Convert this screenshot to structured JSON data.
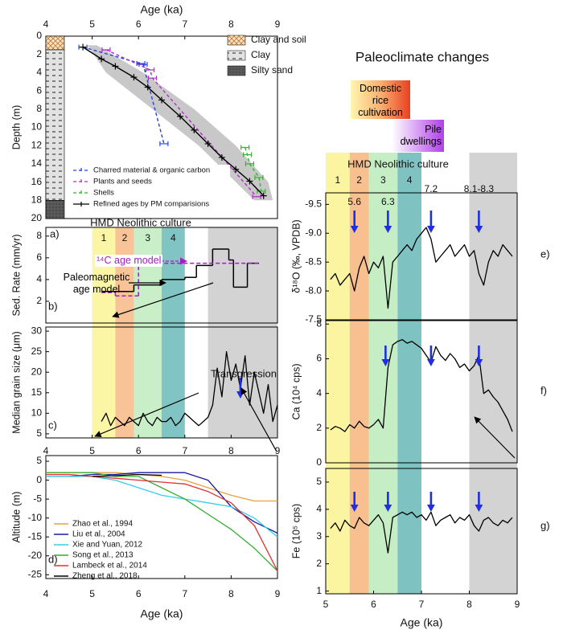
{
  "chart_data": [
    {
      "type": "age-depth",
      "xlabel": "Age (ka)",
      "ylabel": "Depth (m)",
      "panel_label": "a)",
      "xlim": [
        4,
        9
      ],
      "xticks": [
        4,
        5,
        6,
        7,
        8,
        9
      ],
      "ylim": [
        20,
        0
      ],
      "yticks": [
        0,
        2,
        4,
        6,
        8,
        10,
        12,
        14,
        16,
        18,
        20
      ],
      "lithology": [
        {
          "name": "Clay and soil",
          "top": 0,
          "bottom": 1.5,
          "pattern": "crosshatch"
        },
        {
          "name": "Clay",
          "top": 1.5,
          "bottom": 18,
          "pattern": "dash"
        },
        {
          "name": "Silty sand",
          "top": 18,
          "bottom": 20,
          "pattern": "dark"
        }
      ],
      "envelope": {
        "depth": [
          1,
          4,
          8,
          12,
          16,
          18
        ],
        "min": [
          4.9,
          5.3,
          6.3,
          7.3,
          8.1,
          8.5
        ],
        "max": [
          5.1,
          6.1,
          7.2,
          8.1,
          8.8,
          8.9
        ]
      },
      "series": [
        {
          "name": "Charred material & organic carbon",
          "color": "#2340e0",
          "style": "dashed",
          "marker": "errbar",
          "x": [
            4.8,
            6.05,
            6.1,
            6.55
          ],
          "values": [
            1.2,
            3.0,
            3.1,
            11.8
          ]
        },
        {
          "name": "Plants and seeds",
          "color": "#b22fc6",
          "style": "dashed",
          "marker": "errbar",
          "x": [
            5.3,
            6.25,
            6.3,
            8.55
          ],
          "values": [
            1.5,
            3.7,
            4.6,
            17.6
          ]
        },
        {
          "name": "Shells",
          "color": "#2fb52f",
          "style": "dashed",
          "marker": "errbar",
          "x": [
            8.3,
            8.35,
            8.4,
            8.6,
            8.65
          ],
          "values": [
            12.2,
            13.0,
            14.0,
            15.5,
            17.0
          ]
        },
        {
          "name": "Refined ages by PM comparisions",
          "color": "#000000",
          "style": "solid",
          "marker": "plus",
          "x": [
            4.8,
            5.2,
            5.5,
            5.9,
            6.2,
            6.5,
            6.9,
            7.2,
            7.5,
            7.8,
            8.1,
            8.4,
            8.7
          ],
          "values": [
            1.2,
            2.5,
            3.3,
            4.5,
            5.6,
            7.0,
            8.8,
            10.3,
            11.8,
            13.3,
            14.6,
            15.9,
            17.5
          ]
        }
      ]
    },
    {
      "type": "step",
      "ylabel": "Sed. Rate (mm/yr)",
      "panel_label": "b)",
      "xlim": [
        4,
        9
      ],
      "ylim": [
        0,
        8.8
      ],
      "yticks": [
        2,
        4,
        6,
        8
      ],
      "periods": [
        {
          "label": "1",
          "start": 5.0,
          "end": 5.5,
          "color": "#fbf6a6"
        },
        {
          "label": "2",
          "start": 5.5,
          "end": 5.9,
          "color": "#f8c497"
        },
        {
          "label": "3",
          "start": 5.9,
          "end": 6.5,
          "color": "#c9efc8"
        },
        {
          "label": "4",
          "start": 6.5,
          "end": 7.0,
          "color": "#80c4c4"
        }
      ],
      "shade": {
        "start": 7.5,
        "end": 9.0,
        "color": "#d3d3d3"
      },
      "annotations": [
        "HMD Neolithic culture"
      ],
      "series": [
        {
          "name": "Paleomagnetic age model",
          "color": "#000000",
          "style": "solid",
          "bins": [
            5.2,
            5.9,
            6.5,
            7.0,
            7.25,
            7.6,
            7.95,
            8.05,
            8.35,
            8.6
          ],
          "values": [
            2.9,
            3.5,
            4.0,
            4.2,
            5.3,
            6.8,
            5.8,
            3.3,
            5.5
          ]
        },
        {
          "name": "¹⁴C age model",
          "color": "#a020c0",
          "style": "dashed",
          "bins": [
            5.2,
            5.5,
            6.0,
            8.6
          ],
          "values": [
            2.8,
            2.5,
            5.5
          ]
        }
      ]
    },
    {
      "type": "line",
      "ylabel": "Median grain size (μm)",
      "panel_label": "c)",
      "xlim": [
        4,
        9
      ],
      "xticks": [
        4,
        5,
        6,
        7,
        8,
        9
      ],
      "ylim": [
        4,
        31
      ],
      "yticks": [
        5,
        10,
        15,
        20,
        25,
        30
      ],
      "annotations": [
        "Transgression"
      ],
      "x": [
        5.2,
        5.3,
        5.4,
        5.5,
        5.6,
        5.7,
        5.8,
        5.9,
        6.0,
        6.1,
        6.2,
        6.3,
        6.4,
        6.5,
        6.6,
        6.7,
        6.8,
        6.9,
        7.0,
        7.1,
        7.2,
        7.3,
        7.4,
        7.5,
        7.6,
        7.7,
        7.8,
        7.9,
        8.0,
        8.1,
        8.2,
        8.3,
        8.4,
        8.5,
        8.6,
        8.7,
        8.8,
        8.9,
        9.0
      ],
      "series": [
        {
          "color": "#000000",
          "values": [
            8,
            10,
            7,
            9,
            8,
            7,
            9,
            8,
            7,
            10,
            8,
            7,
            9,
            8,
            8,
            9,
            7,
            8,
            10,
            9,
            8,
            7,
            8,
            9,
            12,
            21,
            14,
            25,
            18,
            22,
            16,
            24,
            12,
            20,
            15,
            10,
            17,
            8,
            12
          ]
        }
      ],
      "markers": [
        8.2
      ]
    },
    {
      "type": "line",
      "xlabel": "Age (ka)",
      "ylabel": "Altitude (m)",
      "panel_label": "d)",
      "xlim": [
        4,
        9
      ],
      "xticks": [
        4,
        5,
        6,
        7,
        8,
        9
      ],
      "ylim": [
        -26,
        6.5
      ],
      "yticks": [
        5,
        0,
        -5,
        -10,
        -15,
        -20,
        -25
      ],
      "legend": "lower left",
      "x": [
        4,
        4.5,
        5,
        5.5,
        6,
        6.5,
        7,
        7.5,
        8,
        8.5,
        9
      ],
      "series": [
        {
          "name": "Zhao et al., 1994",
          "color": "#e8a040",
          "values": [
            2,
            2,
            2,
            2,
            1.5,
            1,
            0,
            -2,
            -4,
            -5.5,
            -5.5
          ]
        },
        {
          "name": "Liu et al., 2004",
          "color": "#1a1aa0",
          "values": [
            1,
            1,
            1.5,
            1.5,
            2,
            2,
            2,
            0,
            -7,
            -11,
            -14
          ]
        },
        {
          "name": "Xie and Yuan, 2012",
          "color": "#30d0e8",
          "values": [
            1,
            1,
            1,
            0,
            -2,
            -4,
            -5,
            -6,
            -7,
            -10,
            -15
          ]
        },
        {
          "name": "Song et al., 2013",
          "color": "#30b030",
          "values": [
            2,
            2,
            2,
            1,
            1,
            -2,
            -5,
            -9,
            -13,
            -18,
            -24
          ]
        },
        {
          "name": "Lambeck et al., 2014",
          "color": "#e03030",
          "values": [
            1.5,
            1.5,
            1,
            0.5,
            0,
            -0.5,
            -1,
            -3,
            -6,
            -12,
            -24
          ]
        },
        {
          "name": "Zheng et al., 2018",
          "color": "#000000",
          "values": [
            null,
            null,
            1,
            1.2,
            1.5,
            1.3,
            null,
            null,
            null,
            null,
            null
          ]
        }
      ]
    },
    {
      "type": "line",
      "title": "Paleoclimate changes",
      "ylabel": "δ¹⁸O (‰, VPDB)",
      "panel_label": "e)",
      "xlim": [
        5,
        9
      ],
      "ylim": [
        -7.5,
        -9.7
      ],
      "yticks": [
        -9.5,
        {
          "value": -9,
          "label": "-9.0"
        },
        -8.5,
        {
          "value": -8,
          "label": "-8.0"
        },
        -7.5
      ],
      "periods": [
        {
          "label": "1",
          "start": 5.0,
          "end": 5.5,
          "color": "#fbf4a0"
        },
        {
          "label": "2",
          "start": 5.5,
          "end": 5.9,
          "color": "#f8c08e"
        },
        {
          "label": "3",
          "start": 5.9,
          "end": 6.5,
          "color": "#c6eec4"
        },
        {
          "label": "4",
          "start": 6.5,
          "end": 7.0,
          "color": "#7fc2c2"
        }
      ],
      "shade": {
        "start": 8.0,
        "end": 9.0,
        "color": "#d3d3d3"
      },
      "annotations": [
        "HMD Neolithic culture",
        "Domestic rice cultivation",
        "Pile dwellings"
      ],
      "x": [
        5.1,
        5.2,
        5.3,
        5.4,
        5.5,
        5.6,
        5.7,
        5.8,
        5.9,
        6.0,
        6.1,
        6.2,
        6.3,
        6.4,
        6.5,
        6.6,
        6.7,
        6.8,
        6.9,
        7.0,
        7.1,
        7.2,
        7.3,
        7.4,
        7.5,
        7.6,
        7.7,
        7.8,
        7.9,
        8.0,
        8.1,
        8.2,
        8.3,
        8.4,
        8.5,
        8.6,
        8.7,
        8.8,
        8.9
      ],
      "series": [
        {
          "color": "#000000",
          "values": [
            -8.2,
            -8.3,
            -8.1,
            -8.2,
            -8.3,
            -8.0,
            -8.4,
            -8.6,
            -8.3,
            -8.5,
            -8.4,
            -8.6,
            -7.7,
            -8.5,
            -8.6,
            -8.7,
            -8.8,
            -8.7,
            -8.9,
            -9.0,
            -9.1,
            -8.9,
            -8.5,
            -8.6,
            -8.7,
            -8.8,
            -8.6,
            -8.7,
            -8.8,
            -8.6,
            -8.7,
            -8.3,
            -8.1,
            -8.5,
            -8.7,
            -8.6,
            -8.8,
            -8.7,
            -8.6
          ]
        }
      ],
      "markers": [
        {
          "x": 5.6,
          "label": "5.6"
        },
        {
          "x": 6.3,
          "label": "6.3"
        },
        {
          "x": 7.2,
          "label": "7.2"
        },
        {
          "x": 8.2,
          "label": "8.1-8.3"
        }
      ]
    },
    {
      "type": "line",
      "ylabel": "Ca (10⁴ cps)",
      "panel_label": "f)",
      "xlim": [
        5,
        9
      ],
      "ylim": [
        0,
        8.2
      ],
      "yticks": [
        0,
        2,
        4,
        6,
        8
      ],
      "x": [
        5.1,
        5.2,
        5.3,
        5.4,
        5.5,
        5.6,
        5.7,
        5.8,
        5.9,
        6.0,
        6.1,
        6.2,
        6.3,
        6.4,
        6.5,
        6.6,
        6.7,
        6.8,
        6.9,
        7.0,
        7.1,
        7.2,
        7.3,
        7.4,
        7.5,
        7.6,
        7.7,
        7.8,
        7.9,
        8.0,
        8.1,
        8.2,
        8.3,
        8.4,
        8.5,
        8.6,
        8.7,
        8.8,
        8.9
      ],
      "series": [
        {
          "color": "#000000",
          "values": [
            1.9,
            2.1,
            2.0,
            1.8,
            2.2,
            2.0,
            2.4,
            2.1,
            2.0,
            2.2,
            2.5,
            2.0,
            5.5,
            6.8,
            7.0,
            7.1,
            6.9,
            7.0,
            6.8,
            6.6,
            6.2,
            5.8,
            6.7,
            6.2,
            5.9,
            6.3,
            6.0,
            5.5,
            5.7,
            5.3,
            5.6,
            6.2,
            4.0,
            4.2,
            3.8,
            3.5,
            3.0,
            2.5,
            1.8
          ]
        }
      ],
      "markers": [
        6.25,
        7.2,
        8.2
      ]
    },
    {
      "type": "line",
      "xlabel": "Age (ka)",
      "ylabel": "Fe (10⁵ cps)",
      "panel_label": "g)",
      "xlim": [
        5,
        9
      ],
      "xticks": [
        5,
        6,
        7,
        8,
        9
      ],
      "ylim": [
        0.9,
        5.5
      ],
      "yticks": [
        1,
        2,
        3,
        4,
        5
      ],
      "x": [
        5.1,
        5.2,
        5.3,
        5.4,
        5.5,
        5.6,
        5.7,
        5.8,
        5.9,
        6.0,
        6.1,
        6.2,
        6.3,
        6.4,
        6.5,
        6.6,
        6.7,
        6.8,
        6.9,
        7.0,
        7.1,
        7.2,
        7.3,
        7.4,
        7.5,
        7.6,
        7.7,
        7.8,
        7.9,
        8.0,
        8.1,
        8.2,
        8.3,
        8.4,
        8.5,
        8.6,
        8.7,
        8.8,
        8.9
      ],
      "series": [
        {
          "color": "#000000",
          "values": [
            3.3,
            3.5,
            3.2,
            3.6,
            3.4,
            3.3,
            3.7,
            3.5,
            3.4,
            3.6,
            3.8,
            3.5,
            2.4,
            3.7,
            3.8,
            3.9,
            3.8,
            3.9,
            3.7,
            3.8,
            3.6,
            3.9,
            3.4,
            3.6,
            3.7,
            3.8,
            3.5,
            3.7,
            3.6,
            3.8,
            3.4,
            3.2,
            3.6,
            3.7,
            3.5,
            3.4,
            3.6,
            3.5,
            3.7
          ]
        }
      ],
      "markers": [
        5.6,
        6.3,
        7.2,
        8.2
      ]
    }
  ]
}
